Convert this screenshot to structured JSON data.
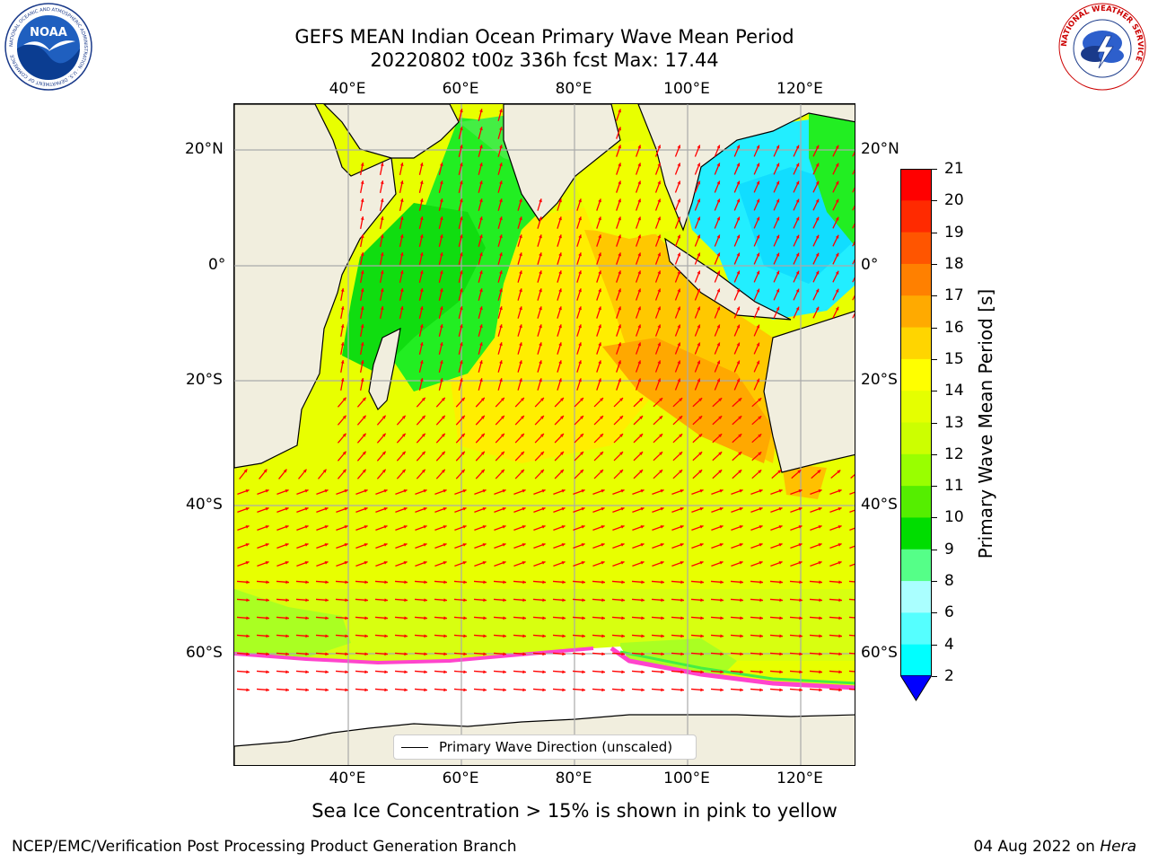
{
  "header": {
    "title_line1": "GEFS MEAN Indian Ocean Primary Wave Mean Period",
    "title_line2": "20220802 t00z 336h fcst   Max: 17.44"
  },
  "logos": {
    "noaa_text": "NOAA",
    "noaa_ring_text": "NATIONAL OCEANIC AND ATMOSPHERIC ADMINISTRATION · U.S. DEPARTMENT OF COMMERCE",
    "nws_ring_text": "NATIONAL WEATHER SERVICE"
  },
  "map": {
    "lon_ticks": [
      "40°E",
      "60°E",
      "80°E",
      "100°E",
      "120°E"
    ],
    "lat_ticks": [
      "20°N",
      "0°",
      "20°S",
      "40°S",
      "60°S"
    ],
    "legend_label": "Primary Wave Direction (unscaled)",
    "colors": {
      "land": "#f1eede",
      "arrow": "#ff0000",
      "ice": "#ff44cc"
    }
  },
  "colorbar": {
    "label": "Primary Wave Mean Period [s]",
    "ticks": [
      "21",
      "20",
      "19",
      "18",
      "17",
      "16",
      "15",
      "14",
      "13",
      "12",
      "11",
      "10",
      "9",
      "8",
      "6",
      "4",
      "2"
    ],
    "colors": [
      "#ff0000",
      "#ff2a00",
      "#ff5500",
      "#ff8000",
      "#ffaa00",
      "#ffd500",
      "#ffff00",
      "#e5ff00",
      "#ccff00",
      "#99ff00",
      "#55ee00",
      "#00dd00",
      "#55ff88",
      "#aaffff",
      "#55ffff",
      "#00ffff",
      "#00aaff",
      "#0000ff"
    ]
  },
  "notes": {
    "sea_ice": "Sea Ice Concentration > 15% is shown in pink to yellow",
    "credit": "NCEP/EMC/Verification Post Processing Product Generation Branch",
    "date_prefix": "04 Aug 2022 on ",
    "date_machine": "Hera"
  }
}
